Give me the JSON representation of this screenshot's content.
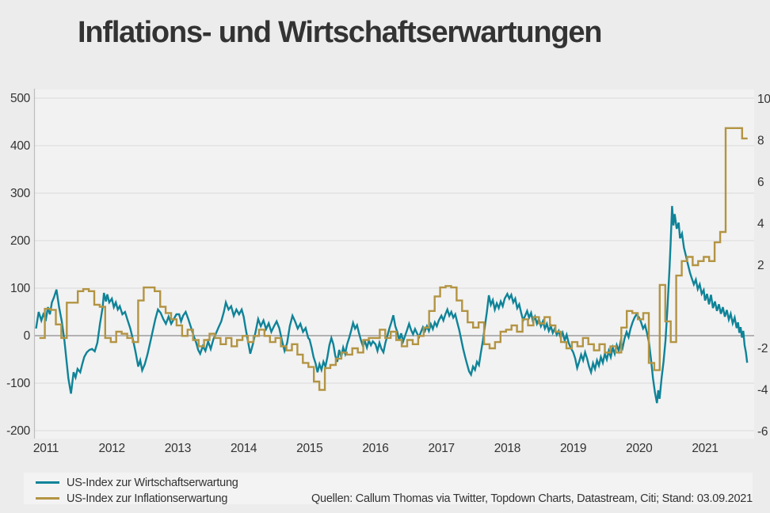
{
  "title": "Inflations- und Wirtschaftserwartungen",
  "legend": {
    "items": [
      {
        "label": "US-Index zur Wirtschaftserwartung",
        "color": "#0f8398"
      },
      {
        "label": "US-Index zur Inflationserwartung",
        "color": "#b39443"
      }
    ]
  },
  "source_note": "Quellen: Callum Thomas via Twitter, Topdown Charts, Datastream, Citi; Stand: 03.09.2021",
  "colors": {
    "background": "#ececec",
    "plot_background": "#f2f2f2",
    "gridline": "#d9d9d9",
    "zero_line": "#9c9c9c",
    "axis_line": "#bdbdbd",
    "text": "#333333",
    "series_economy": "#0f8398",
    "series_inflation": "#b39443"
  },
  "chart_data": {
    "type": "line",
    "title": "Inflations- und Wirtschaftserwartungen",
    "xlabel": "",
    "ylabel_left": "",
    "ylabel_right": "",
    "grid": true,
    "legend_position": "bottom-left",
    "x_ticks": [
      2011,
      2012,
      2013,
      2014,
      2015,
      2016,
      2017,
      2018,
      2019,
      2020,
      2021
    ],
    "x_range": [
      2010.82,
      2021.75
    ],
    "left_axis": {
      "ticks": [
        500,
        400,
        300,
        200,
        100,
        0,
        -100,
        -200
      ],
      "range": [
        -200,
        500
      ]
    },
    "right_axis": {
      "ticks": [
        10,
        8,
        6,
        4,
        2,
        -2,
        -4,
        -6
      ],
      "range": [
        -6.2,
        10.5
      ]
    },
    "series": [
      {
        "name": "US-Index zur Wirtschaftserwartung",
        "axis": "left",
        "style": "line",
        "color": "#0f8398",
        "points": [
          2010.85,
          15,
          2010.89,
          50,
          2010.93,
          32,
          2010.96,
          45,
          2011.0,
          35,
          2011.03,
          60,
          2011.06,
          45,
          2011.09,
          70,
          2011.12,
          80,
          2011.16,
          97,
          2011.2,
          60,
          2011.24,
          30,
          2011.28,
          -10,
          2011.31,
          -50,
          2011.34,
          -90,
          2011.38,
          -122,
          2011.42,
          -77,
          2011.45,
          -88,
          2011.48,
          -70,
          2011.52,
          -77,
          2011.55,
          -60,
          2011.58,
          -45,
          2011.62,
          -35,
          2011.66,
          -30,
          2011.7,
          -28,
          2011.74,
          -33,
          2011.78,
          -15,
          2011.82,
          25,
          2011.86,
          60,
          2011.88,
          90,
          2011.91,
          72,
          2011.93,
          87,
          2011.96,
          70,
          2012.0,
          78,
          2012.03,
          60,
          2012.06,
          70,
          2012.09,
          55,
          2012.12,
          62,
          2012.16,
          45,
          2012.2,
          50,
          2012.24,
          32,
          2012.28,
          15,
          2012.32,
          -8,
          2012.36,
          -35,
          2012.4,
          -65,
          2012.43,
          -52,
          2012.46,
          -73,
          2012.5,
          -60,
          2012.54,
          -40,
          2012.58,
          -15,
          2012.62,
          10,
          2012.66,
          35,
          2012.7,
          55,
          2012.74,
          48,
          2012.78,
          35,
          2012.82,
          25,
          2012.86,
          40,
          2012.9,
          25,
          2012.94,
          35,
          2012.98,
          45,
          2013.02,
          45,
          2013.05,
          30,
          2013.08,
          42,
          2013.12,
          50,
          2013.16,
          35,
          2013.2,
          18,
          2013.24,
          0,
          2013.28,
          -15,
          2013.31,
          -30,
          2013.34,
          -38,
          2013.38,
          -22,
          2013.42,
          -32,
          2013.46,
          -12,
          2013.5,
          -28,
          2013.54,
          -8,
          2013.58,
          5,
          2013.62,
          18,
          2013.66,
          30,
          2013.7,
          50,
          2013.73,
          70,
          2013.77,
          55,
          2013.81,
          62,
          2013.85,
          42,
          2013.89,
          55,
          2013.93,
          45,
          2013.97,
          55,
          2014.0,
          40,
          2014.03,
          15,
          2014.07,
          -15,
          2014.1,
          -38,
          2014.14,
          -18,
          2014.18,
          8,
          2014.22,
          35,
          2014.26,
          20,
          2014.3,
          32,
          2014.34,
          14,
          2014.38,
          26,
          2014.42,
          8,
          2014.46,
          20,
          2014.5,
          30,
          2014.54,
          16,
          2014.58,
          -10,
          2014.62,
          -32,
          2014.66,
          -15,
          2014.7,
          20,
          2014.74,
          42,
          2014.78,
          30,
          2014.82,
          15,
          2014.86,
          25,
          2014.9,
          8,
          2014.94,
          16,
          2014.98,
          -5,
          2015.0,
          -8,
          2015.03,
          -25,
          2015.06,
          -45,
          2015.09,
          -58,
          2015.12,
          -77,
          2015.15,
          -60,
          2015.18,
          -72,
          2015.21,
          -55,
          2015.24,
          -65,
          2015.27,
          -45,
          2015.3,
          -20,
          2015.33,
          -5,
          2015.36,
          -18,
          2015.39,
          -42,
          2015.42,
          -55,
          2015.45,
          -30,
          2015.48,
          -45,
          2015.51,
          -25,
          2015.54,
          -38,
          2015.57,
          -18,
          2015.6,
          -5,
          2015.63,
          10,
          2015.66,
          27,
          2015.69,
          15,
          2015.72,
          22,
          2015.75,
          5,
          2015.78,
          -10,
          2015.81,
          -22,
          2015.84,
          -12,
          2015.87,
          -25,
          2015.9,
          -10,
          2015.93,
          -20,
          2015.96,
          -12,
          2016.0,
          -18,
          2016.03,
          -32,
          2016.06,
          -15,
          2016.09,
          -28,
          2016.12,
          -35,
          2016.15,
          -15,
          2016.18,
          0,
          2016.21,
          15,
          2016.24,
          28,
          2016.27,
          43,
          2016.3,
          20,
          2016.33,
          8,
          2016.36,
          -10,
          2016.39,
          5,
          2016.42,
          -12,
          2016.45,
          0,
          2016.48,
          12,
          2016.51,
          25,
          2016.54,
          12,
          2016.57,
          3,
          2016.6,
          14,
          2016.63,
          5,
          2016.66,
          -3,
          2016.69,
          8,
          2016.72,
          18,
          2016.75,
          10,
          2016.78,
          20,
          2016.81,
          10,
          2016.84,
          24,
          2016.87,
          14,
          2016.9,
          28,
          2016.93,
          20,
          2016.96,
          32,
          2017.0,
          42,
          2017.03,
          32,
          2017.06,
          45,
          2017.09,
          55,
          2017.12,
          42,
          2017.15,
          50,
          2017.18,
          38,
          2017.21,
          45,
          2017.24,
          28,
          2017.27,
          12,
          2017.3,
          -8,
          2017.33,
          -28,
          2017.36,
          -45,
          2017.39,
          -60,
          2017.42,
          -75,
          2017.45,
          -82,
          2017.48,
          -65,
          2017.51,
          -72,
          2017.54,
          -55,
          2017.57,
          -62,
          2017.6,
          -35,
          2017.63,
          -10,
          2017.66,
          20,
          2017.69,
          50,
          2017.72,
          85,
          2017.75,
          65,
          2017.78,
          75,
          2017.81,
          55,
          2017.84,
          68,
          2017.87,
          58,
          2017.9,
          72,
          2017.93,
          62,
          2017.96,
          78,
          2018.0,
          88,
          2018.03,
          78,
          2018.06,
          86,
          2018.09,
          70,
          2018.12,
          78,
          2018.15,
          58,
          2018.18,
          66,
          2018.21,
          48,
          2018.24,
          32,
          2018.27,
          42,
          2018.3,
          52,
          2018.33,
          38,
          2018.36,
          48,
          2018.39,
          30,
          2018.42,
          40,
          2018.45,
          25,
          2018.48,
          35,
          2018.51,
          20,
          2018.54,
          30,
          2018.57,
          15,
          2018.6,
          25,
          2018.63,
          10,
          2018.66,
          20,
          2018.69,
          6,
          2018.72,
          15,
          2018.75,
          2,
          2018.78,
          10,
          2018.81,
          -4,
          2018.84,
          6,
          2018.87,
          -10,
          2018.9,
          2,
          2018.93,
          -15,
          2018.96,
          -25,
          2019.0,
          -35,
          2019.03,
          -48,
          2019.06,
          -68,
          2019.09,
          -55,
          2019.12,
          -40,
          2019.15,
          -52,
          2019.18,
          -35,
          2019.21,
          -48,
          2019.24,
          -65,
          2019.27,
          -77,
          2019.3,
          -58,
          2019.33,
          -70,
          2019.36,
          -52,
          2019.39,
          -63,
          2019.42,
          -45,
          2019.45,
          -57,
          2019.48,
          -38,
          2019.51,
          -50,
          2019.54,
          -32,
          2019.57,
          -45,
          2019.6,
          -25,
          2019.63,
          -38,
          2019.66,
          -20,
          2019.69,
          -32,
          2019.72,
          -12,
          2019.75,
          -25,
          2019.78,
          -5,
          2019.81,
          8,
          2019.84,
          -3,
          2019.87,
          15,
          2019.9,
          28,
          2019.93,
          38,
          2019.96,
          45,
          2020.0,
          38,
          2020.03,
          28,
          2020.06,
          15,
          2020.09,
          22,
          2020.12,
          5,
          2020.15,
          -15,
          2020.18,
          -50,
          2020.21,
          -90,
          2020.24,
          -120,
          2020.27,
          -142,
          2020.29,
          -115,
          2020.31,
          -133,
          2020.34,
          -90,
          2020.37,
          -55,
          2020.4,
          -10,
          2020.43,
          60,
          2020.46,
          140,
          2020.48,
          200,
          2020.5,
          273,
          2020.52,
          232,
          2020.54,
          256,
          2020.57,
          225,
          2020.6,
          238,
          2020.62,
          205,
          2020.65,
          215,
          2020.68,
          185,
          2020.71,
          168,
          2020.74,
          150,
          2020.77,
          133,
          2020.8,
          120,
          2020.83,
          108,
          2020.86,
          118,
          2020.89,
          98,
          2020.92,
          108,
          2020.95,
          88,
          2020.98,
          96,
          2021.0,
          74,
          2021.03,
          88,
          2021.06,
          66,
          2021.09,
          86,
          2021.12,
          58,
          2021.15,
          72,
          2021.18,
          52,
          2021.21,
          66,
          2021.24,
          46,
          2021.27,
          60,
          2021.3,
          40,
          2021.33,
          54,
          2021.36,
          34,
          2021.39,
          46,
          2021.42,
          26,
          2021.45,
          38,
          2021.48,
          16,
          2021.5,
          28,
          2021.52,
          6,
          2021.54,
          18,
          2021.56,
          -4,
          2021.58,
          10,
          2021.6,
          -20,
          2021.62,
          -35,
          2021.64,
          -57
        ]
      },
      {
        "name": "US-Index zur Inflationserwartung",
        "axis": "right",
        "style": "step",
        "color": "#b39443",
        "x_start": 2010.9,
        "step_years": 0.0833,
        "values": [
          -1.5,
          -0.1,
          -0.15,
          -0.85,
          -1.5,
          0.2,
          0.2,
          0.75,
          0.85,
          0.75,
          0.1,
          0.0,
          -1.5,
          -1.7,
          -1.2,
          -1.3,
          -1.5,
          -1.7,
          0.3,
          0.93,
          0.93,
          0.75,
          0.0,
          -0.3,
          -0.6,
          -0.9,
          -1.4,
          -1.1,
          -1.6,
          -1.9,
          -1.6,
          -1.3,
          -1.5,
          -1.8,
          -1.5,
          -1.9,
          -1.6,
          -1.4,
          -1.7,
          -1.4,
          -1.1,
          -1.4,
          -1.7,
          -1.5,
          -1.9,
          -2.1,
          -1.8,
          -2.3,
          -2.7,
          -2.9,
          -3.6,
          -4.0,
          -2.95,
          -2.8,
          -2.5,
          -2.2,
          -2.3,
          -2.0,
          -2.2,
          -1.6,
          -1.5,
          -1.5,
          -1.1,
          -1.5,
          -1.2,
          -1.6,
          -1.9,
          -1.6,
          -1.8,
          -1.4,
          -1.0,
          -0.2,
          0.5,
          0.93,
          1.0,
          0.93,
          0.3,
          -0.2,
          -0.75,
          -1.0,
          -0.75,
          -1.8,
          -2.0,
          -1.7,
          -1.2,
          -1.1,
          -0.9,
          -1.2,
          -0.6,
          -0.9,
          -0.5,
          -0.8,
          -0.5,
          -0.9,
          -1.2,
          -1.7,
          -2.0,
          -1.7,
          -1.9,
          -1.5,
          -1.8,
          -2.1,
          -1.8,
          -2.2,
          -1.9,
          -2.2,
          -1.0,
          -0.2,
          -0.3,
          -0.6,
          -0.3,
          -2.7,
          -3.05,
          1.05,
          -0.7,
          -1.7,
          1.5,
          2.2,
          2.4,
          2.0,
          2.2,
          2.4,
          2.2,
          3.1,
          3.6,
          8.6,
          8.6,
          8.6,
          8.1
        ]
      }
    ]
  }
}
